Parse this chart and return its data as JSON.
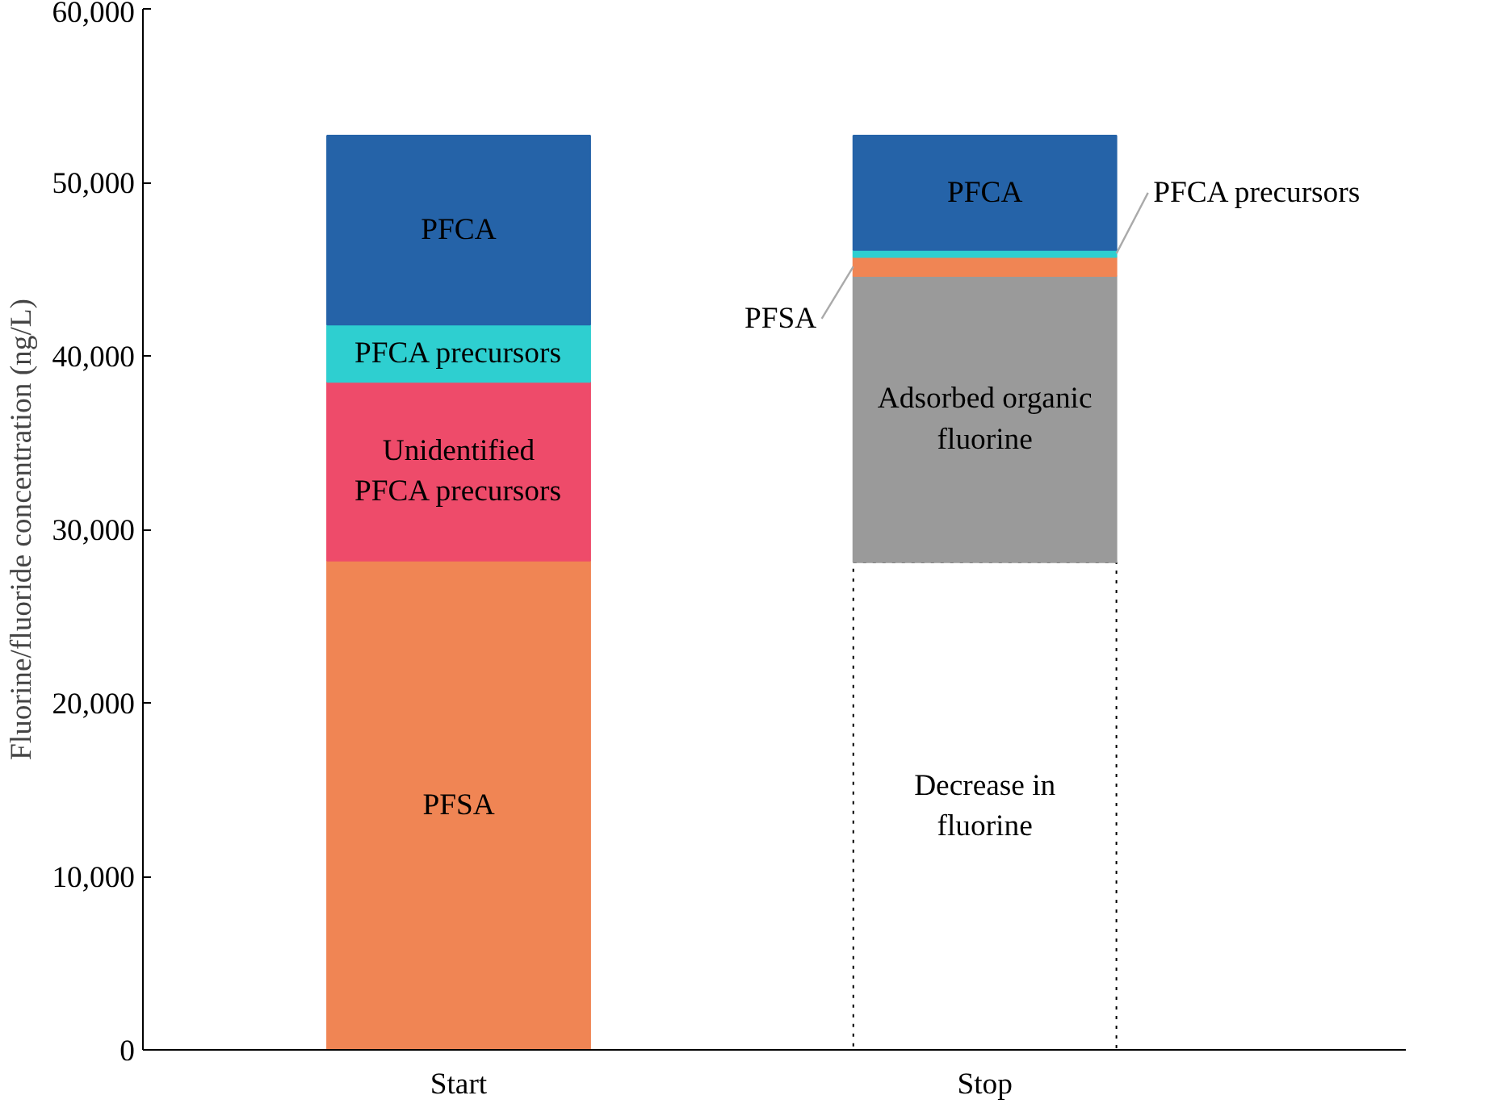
{
  "chart_data": {
    "type": "bar",
    "stacked": true,
    "ylabel": "Fluorine/fluoride concentration (ng/L)",
    "categories": [
      "Start",
      "Stop"
    ],
    "ylim": [
      0,
      60000
    ],
    "yticks": [
      0,
      {
        "value": 10000,
        "label": "10,000"
      },
      {
        "value": 20000,
        "label": "20,000"
      },
      {
        "value": 30000,
        "label": "30,000"
      },
      {
        "value": 40000,
        "label": "40,000"
      },
      {
        "value": 50000,
        "label": "50,000"
      },
      {
        "value": 60000,
        "label": "60,000"
      }
    ],
    "grid": false,
    "series": [
      {
        "name": "Decrease in fluorine",
        "color": "#ffffff",
        "line_style": "dotted",
        "values": [
          null,
          28100
        ]
      },
      {
        "name": "Adsorbed organic fluorine",
        "color": "#9a9a9a",
        "values": [
          null,
          16500
        ]
      },
      {
        "name": "PFSA",
        "color": "#f08554",
        "values": [
          28200,
          1100
        ]
      },
      {
        "name": "Unidentified PFCA precursors",
        "color": "#ee4b6a",
        "values": [
          10300,
          null
        ]
      },
      {
        "name": "PFCA precursors",
        "color": "#2ecfd0",
        "values": [
          3300,
          400
        ]
      },
      {
        "name": "PFCA",
        "color": "#2563a8",
        "values": [
          10900,
          6600
        ]
      }
    ]
  }
}
